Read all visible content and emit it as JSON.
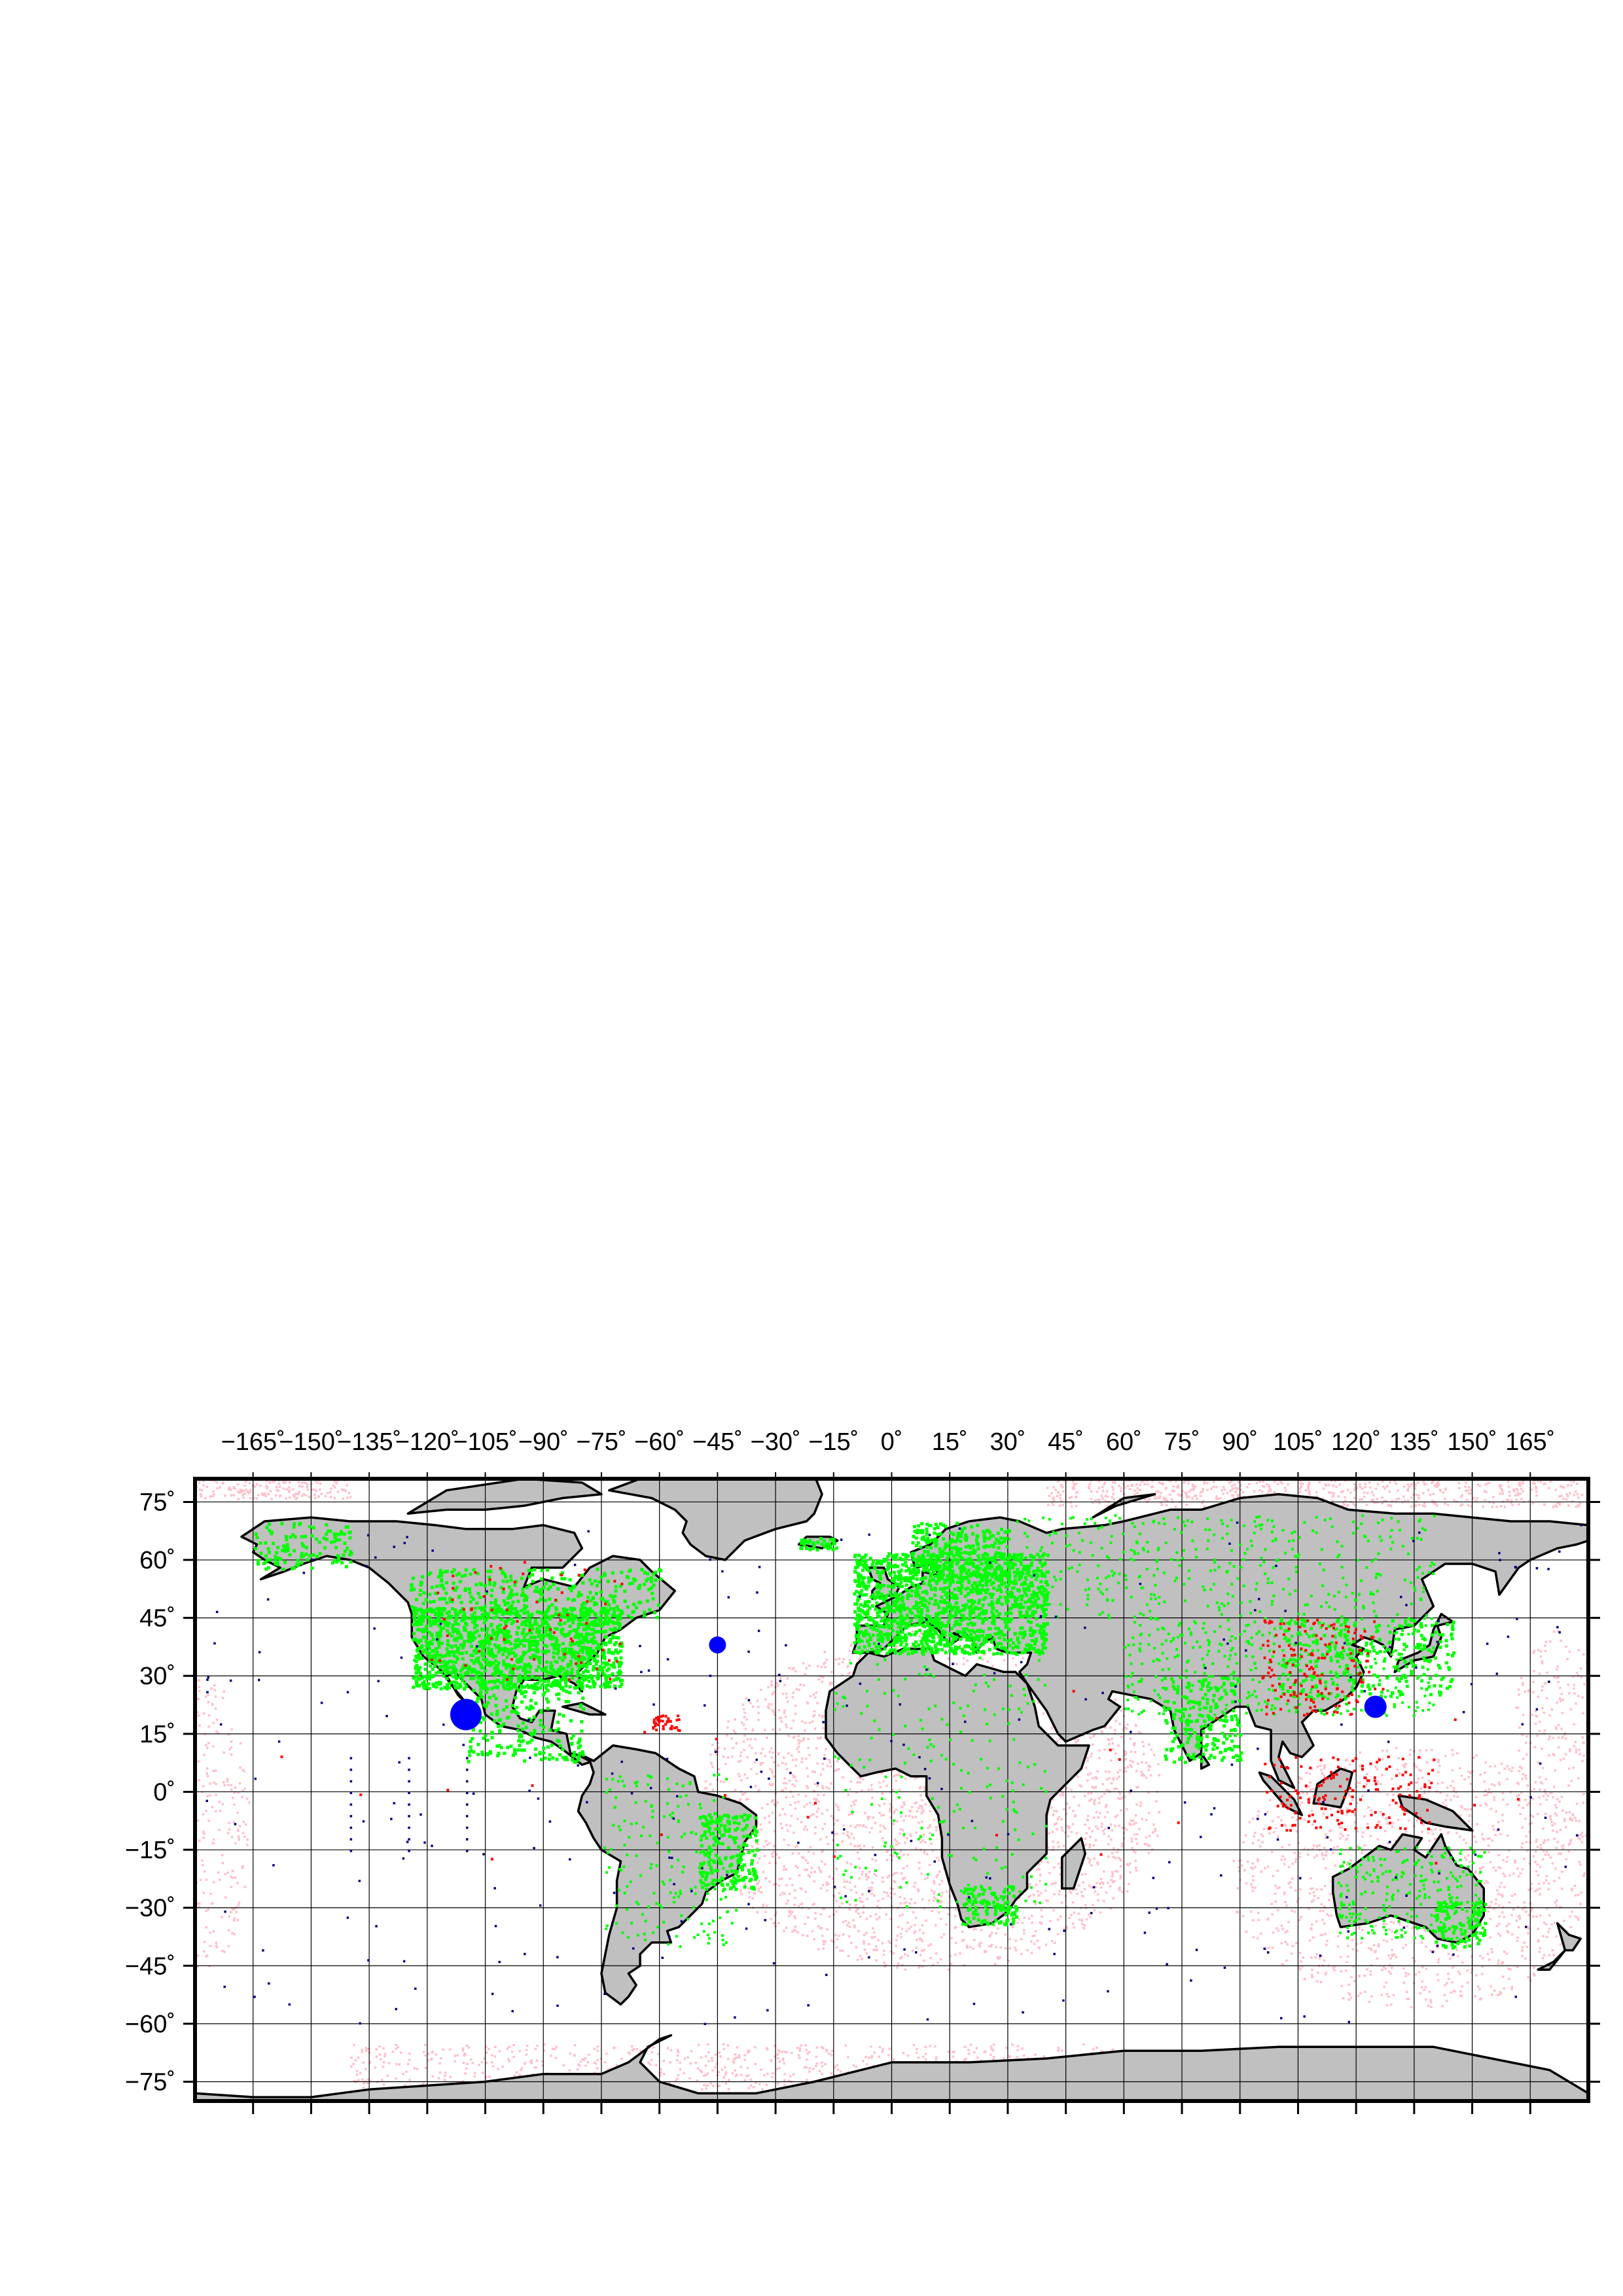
{
  "map": {
    "projection": "equirectangular",
    "lon_range": [
      -180,
      180
    ],
    "lat_range": [
      -80,
      81
    ],
    "grid": true,
    "colors": {
      "ocean": "#ffffff",
      "land": "#c0c0c0",
      "coastline": "#000000",
      "pink_points": "#ffc0cb",
      "green_points": "#00ff00",
      "red_points": "#ff0000",
      "navy_points": "#000080",
      "blue_markers": "#0000ff",
      "grid": "#000000"
    },
    "lon_ticks": [
      {
        "value": -165,
        "label": "−165˚"
      },
      {
        "value": -150,
        "label": "−150˚"
      },
      {
        "value": -135,
        "label": "−135˚"
      },
      {
        "value": -120,
        "label": "−120˚"
      },
      {
        "value": -105,
        "label": "−105˚"
      },
      {
        "value": -90,
        "label": "−90˚"
      },
      {
        "value": -75,
        "label": "−75˚"
      },
      {
        "value": -60,
        "label": "−60˚"
      },
      {
        "value": -45,
        "label": "−45˚"
      },
      {
        "value": -30,
        "label": "−30˚"
      },
      {
        "value": -15,
        "label": "−15˚"
      },
      {
        "value": 0,
        "label": "0˚"
      },
      {
        "value": 15,
        "label": "15˚"
      },
      {
        "value": 30,
        "label": "30˚"
      },
      {
        "value": 45,
        "label": "45˚"
      },
      {
        "value": 60,
        "label": "60˚"
      },
      {
        "value": 75,
        "label": "75˚"
      },
      {
        "value": 90,
        "label": "90˚"
      },
      {
        "value": 105,
        "label": "105˚"
      },
      {
        "value": 120,
        "label": "120˚"
      },
      {
        "value": 135,
        "label": "135˚"
      },
      {
        "value": 150,
        "label": "150˚"
      },
      {
        "value": 165,
        "label": "165˚"
      }
    ],
    "lat_ticks": [
      {
        "value": 75,
        "label": "75˚"
      },
      {
        "value": 60,
        "label": "60˚"
      },
      {
        "value": 45,
        "label": "45˚"
      },
      {
        "value": 30,
        "label": "30˚"
      },
      {
        "value": 15,
        "label": "15˚"
      },
      {
        "value": 0,
        "label": "0˚"
      },
      {
        "value": -15,
        "label": "−15˚"
      },
      {
        "value": -30,
        "label": "−30˚"
      },
      {
        "value": -45,
        "label": "−45˚"
      },
      {
        "value": -60,
        "label": "−60˚"
      },
      {
        "value": -75,
        "label": "−75˚"
      }
    ],
    "blue_markers": [
      {
        "lon": -110,
        "lat": 20,
        "size": "large"
      },
      {
        "lon": -45,
        "lat": 38,
        "size": "small"
      },
      {
        "lon": 125,
        "lat": 22,
        "size": "medium"
      }
    ]
  }
}
